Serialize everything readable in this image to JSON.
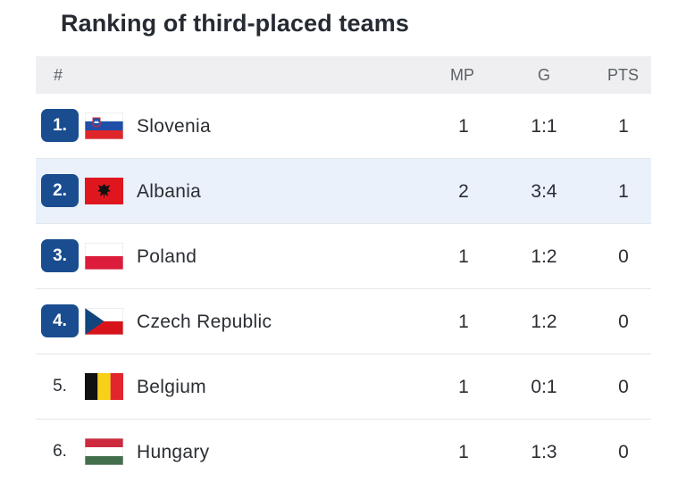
{
  "title": "Ranking of third-placed teams",
  "colors": {
    "rank_badge": "#1a4d8f",
    "highlight_row": "#eaf1fb",
    "header_bg": "#efeff1"
  },
  "columns": {
    "rank": "#",
    "mp": "MP",
    "g": "G",
    "pts": "PTS"
  },
  "rows": [
    {
      "rank": "1.",
      "team": "Slovenia",
      "flag": "slovenia-flag-icon",
      "mp": "1",
      "g": "1:1",
      "pts": "1",
      "badge": true,
      "highlight": false
    },
    {
      "rank": "2.",
      "team": "Albania",
      "flag": "albania-flag-icon",
      "mp": "2",
      "g": "3:4",
      "pts": "1",
      "badge": true,
      "highlight": true
    },
    {
      "rank": "3.",
      "team": "Poland",
      "flag": "poland-flag-icon",
      "mp": "1",
      "g": "1:2",
      "pts": "0",
      "badge": true,
      "highlight": false
    },
    {
      "rank": "4.",
      "team": "Czech Republic",
      "flag": "czech-republic-flag-icon",
      "mp": "1",
      "g": "1:2",
      "pts": "0",
      "badge": true,
      "highlight": false
    },
    {
      "rank": "5.",
      "team": "Belgium",
      "flag": "belgium-flag-icon",
      "mp": "1",
      "g": "0:1",
      "pts": "0",
      "badge": false,
      "highlight": false
    },
    {
      "rank": "6.",
      "team": "Hungary",
      "flag": "hungary-flag-icon",
      "mp": "1",
      "g": "1:3",
      "pts": "0",
      "badge": false,
      "highlight": false
    }
  ]
}
